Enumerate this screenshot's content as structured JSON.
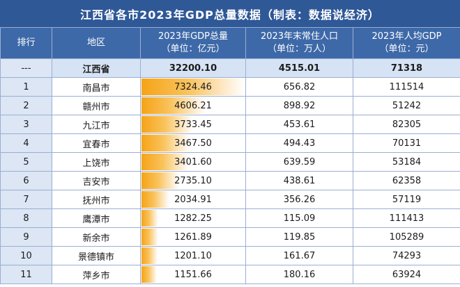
{
  "title": "江西省各市2023年GDP总量数据（制表：数据说经济）",
  "headers": [
    {
      "line1": "排行",
      "line2": ""
    },
    {
      "line1": "地区",
      "line2": ""
    },
    {
      "line1": "2023年GDP总量",
      "line2": "（单位：亿元）"
    },
    {
      "line1": "2023年末常住人口",
      "line2": "（单位：万人）"
    },
    {
      "line1": "2023年人均GDP",
      "line2": "（单位：元）"
    }
  ],
  "total": {
    "rank": "---",
    "region": "江西省",
    "gdp": "32200.10",
    "population": "4515.01",
    "per_capita": "71318"
  },
  "gdp_bar_max": 7324.46,
  "colors": {
    "title_bg": "#2f5897",
    "header_bg": "#3e69a8",
    "bar": "#f6a316",
    "total_row": "#d6e3f5"
  },
  "rows": [
    {
      "rank": "1",
      "region": "南昌市",
      "gdp": "7324.46",
      "population": "656.82",
      "per_capita": "111514"
    },
    {
      "rank": "2",
      "region": "赣州市",
      "gdp": "4606.21",
      "population": "898.92",
      "per_capita": "51242"
    },
    {
      "rank": "3",
      "region": "九江市",
      "gdp": "3733.45",
      "population": "453.61",
      "per_capita": "82305"
    },
    {
      "rank": "4",
      "region": "宜春市",
      "gdp": "3467.50",
      "population": "494.43",
      "per_capita": "70131"
    },
    {
      "rank": "5",
      "region": "上饶市",
      "gdp": "3401.60",
      "population": "639.59",
      "per_capita": "53184"
    },
    {
      "rank": "6",
      "region": "吉安市",
      "gdp": "2735.10",
      "population": "438.61",
      "per_capita": "62358"
    },
    {
      "rank": "7",
      "region": "抚州市",
      "gdp": "2034.91",
      "population": "356.26",
      "per_capita": "57119"
    },
    {
      "rank": "8",
      "region": "鹰潭市",
      "gdp": "1282.25",
      "population": "115.09",
      "per_capita": "111413"
    },
    {
      "rank": "9",
      "region": "新余市",
      "gdp": "1261.89",
      "population": "119.85",
      "per_capita": "105289"
    },
    {
      "rank": "10",
      "region": "景德镇市",
      "gdp": "1201.10",
      "population": "161.67",
      "per_capita": "74293"
    },
    {
      "rank": "11",
      "region": "萍乡市",
      "gdp": "1151.66",
      "population": "180.16",
      "per_capita": "63924"
    }
  ]
}
